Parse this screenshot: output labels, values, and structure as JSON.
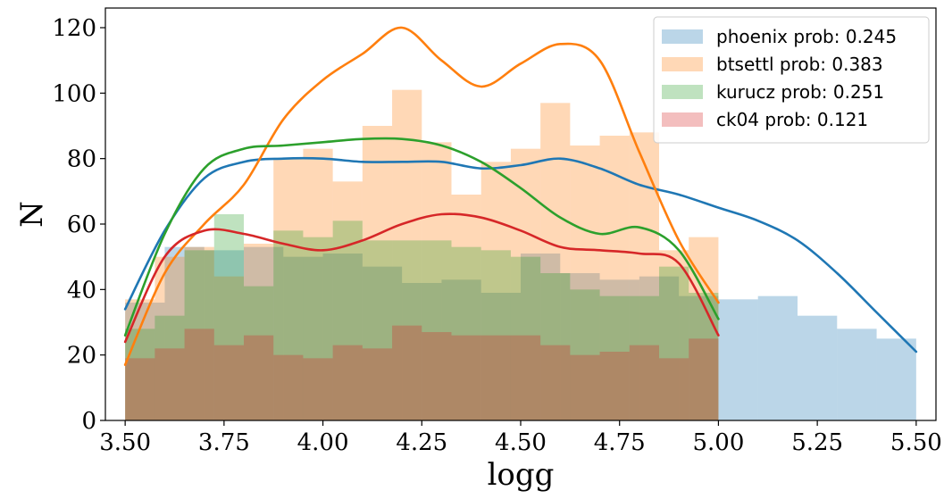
{
  "chart_data": {
    "type": "histogram",
    "xlabel": "logg",
    "ylabel": "N",
    "xlim": [
      3.45,
      5.55
    ],
    "ylim": [
      0,
      126
    ],
    "xticks": [
      "3.50",
      "3.75",
      "4.00",
      "4.25",
      "4.50",
      "4.75",
      "5.00",
      "5.25",
      "5.50"
    ],
    "xtick_values": [
      3.5,
      3.75,
      4.0,
      4.25,
      4.5,
      4.75,
      5.0,
      5.25,
      5.5
    ],
    "yticks": [
      "0",
      "20",
      "40",
      "60",
      "80",
      "100",
      "120"
    ],
    "ytick_values": [
      0,
      20,
      40,
      60,
      80,
      100,
      120
    ],
    "grid": false,
    "legend_position": "top-right",
    "series": [
      {
        "name": "phoenix prob: 0.245",
        "color": "#1f77b4",
        "bin_edges": [
          3.5,
          3.6,
          3.7,
          3.8,
          3.9,
          4.0,
          4.1,
          4.2,
          4.3,
          4.4,
          4.5,
          4.6,
          4.7,
          4.8,
          4.9,
          5.0,
          5.1,
          5.2,
          5.3,
          5.4,
          5.5
        ],
        "counts": [
          36,
          53,
          52,
          53,
          50,
          51,
          47,
          42,
          43,
          39,
          51,
          45,
          43,
          44,
          38,
          37,
          38,
          32,
          28,
          25
        ],
        "kde_x": [
          3.5,
          3.6,
          3.7,
          3.8,
          3.9,
          4.0,
          4.1,
          4.2,
          4.3,
          4.4,
          4.5,
          4.6,
          4.7,
          4.8,
          4.9,
          5.0,
          5.1,
          5.2,
          5.3,
          5.4,
          5.5
        ],
        "kde_y": [
          34,
          58,
          74,
          79,
          80,
          80,
          79,
          79,
          79,
          77,
          78,
          80,
          77,
          72,
          69,
          65,
          61,
          55,
          45,
          33,
          21
        ]
      },
      {
        "name": "btsettl prob: 0.383",
        "color": "#ff7f0e",
        "bin_edges": [
          3.5,
          3.575,
          3.65,
          3.725,
          3.8,
          3.875,
          3.95,
          4.025,
          4.1,
          4.175,
          4.25,
          4.325,
          4.4,
          4.475,
          4.55,
          4.625,
          4.7,
          4.775,
          4.85,
          4.925,
          5.0
        ],
        "counts": [
          37,
          50,
          53,
          44,
          54,
          80,
          83,
          73,
          90,
          101,
          85,
          69,
          79,
          83,
          97,
          84,
          87,
          88,
          52,
          56
        ],
        "kde_x": [
          3.5,
          3.6,
          3.7,
          3.8,
          3.9,
          4.0,
          4.1,
          4.2,
          4.3,
          4.4,
          4.5,
          4.6,
          4.7,
          4.8,
          4.9,
          5.0
        ],
        "kde_y": [
          17,
          45,
          60,
          72,
          92,
          104,
          112,
          120,
          110,
          102,
          109,
          115,
          110,
          82,
          55,
          36
        ]
      },
      {
        "name": "kurucz prob: 0.251",
        "color": "#2ca02c",
        "bin_edges": [
          3.5,
          3.575,
          3.65,
          3.725,
          3.8,
          3.875,
          3.95,
          4.025,
          4.1,
          4.175,
          4.25,
          4.325,
          4.4,
          4.475,
          4.55,
          4.625,
          4.7,
          4.775,
          4.85,
          4.925,
          5.0
        ],
        "counts": [
          28,
          32,
          52,
          63,
          41,
          58,
          56,
          61,
          55,
          55,
          55,
          53,
          52,
          50,
          45,
          40,
          38,
          38,
          47,
          39
        ],
        "kde_x": [
          3.5,
          3.6,
          3.7,
          3.8,
          3.9,
          4.0,
          4.1,
          4.2,
          4.3,
          4.4,
          4.5,
          4.6,
          4.7,
          4.8,
          4.9,
          5.0
        ],
        "kde_y": [
          26,
          57,
          77,
          83,
          84,
          85,
          86,
          86,
          84,
          79,
          71,
          62,
          57,
          59,
          52,
          31
        ]
      },
      {
        "name": "ck04 prob: 0.121",
        "color": "#d62728",
        "bin_edges": [
          3.5,
          3.575,
          3.65,
          3.725,
          3.8,
          3.875,
          3.95,
          4.025,
          4.1,
          4.175,
          4.25,
          4.325,
          4.4,
          4.475,
          4.55,
          4.625,
          4.7,
          4.775,
          4.85,
          4.925,
          5.0
        ],
        "counts": [
          19,
          22,
          28,
          23,
          26,
          20,
          19,
          23,
          22,
          29,
          27,
          26,
          26,
          26,
          23,
          20,
          21,
          23,
          19,
          25
        ],
        "kde_x": [
          3.5,
          3.6,
          3.7,
          3.8,
          3.9,
          4.0,
          4.1,
          4.2,
          4.3,
          4.4,
          4.5,
          4.6,
          4.7,
          4.8,
          4.9,
          5.0
        ],
        "kde_y": [
          24,
          50,
          58,
          57,
          54,
          52,
          55,
          60,
          63,
          62,
          58,
          53,
          52,
          51,
          48,
          26
        ]
      }
    ]
  }
}
